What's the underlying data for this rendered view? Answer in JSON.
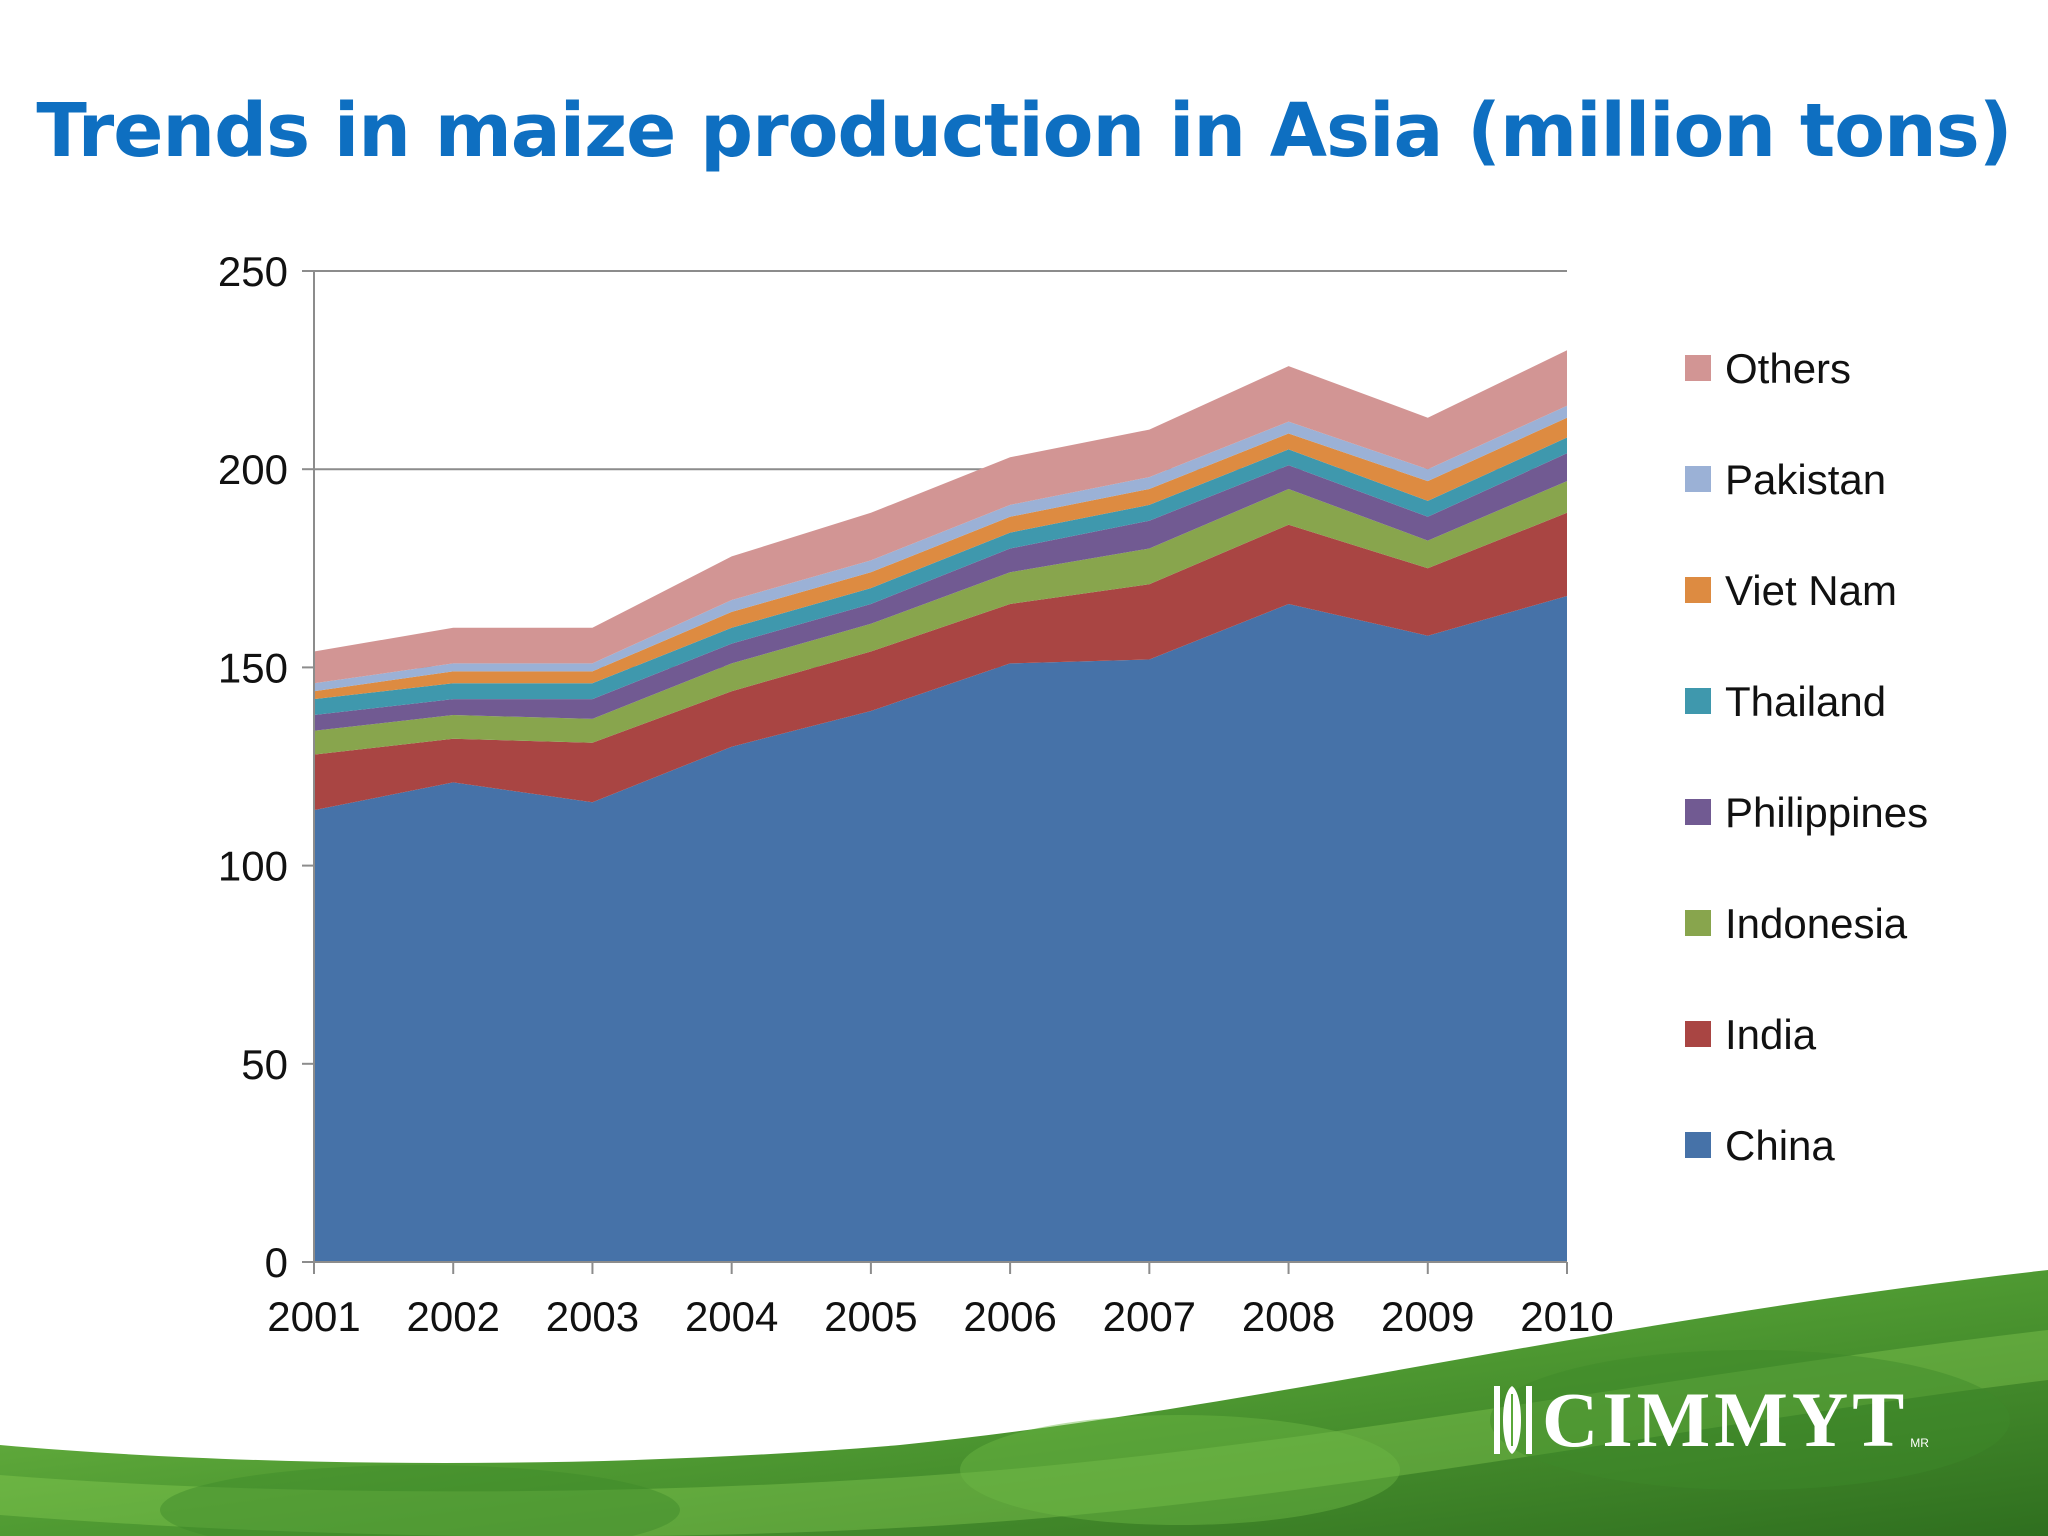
{
  "slide": {
    "title": "Trends in maize production in Asia (million tons)",
    "logo_text": "CIMMYT",
    "logo_mark_text": "MR",
    "colors": {
      "title": "#0e6fc1",
      "footer_green": "#5aa83a"
    }
  },
  "chart_data": {
    "type": "area",
    "stacked": true,
    "title": "",
    "xlabel": "",
    "ylabel": "",
    "x": [
      "2001",
      "2002",
      "2003",
      "2004",
      "2005",
      "2006",
      "2007",
      "2008",
      "2009",
      "2010"
    ],
    "ylim": [
      0,
      250
    ],
    "yticks": [
      0,
      50,
      100,
      150,
      200,
      250
    ],
    "grid": "horizontal",
    "legend_position": "right",
    "series": [
      {
        "name": "China",
        "color": "#4672a8",
        "values": [
          114,
          121,
          116,
          130,
          139,
          151,
          152,
          166,
          158,
          168
        ]
      },
      {
        "name": "India",
        "color": "#a94543",
        "values": [
          14,
          11,
          15,
          14,
          15,
          15,
          19,
          20,
          17,
          21
        ]
      },
      {
        "name": "Indonesia",
        "color": "#88a54d",
        "values": [
          6,
          6,
          6,
          7,
          7,
          8,
          9,
          9,
          7,
          8
        ]
      },
      {
        "name": "Philippines",
        "color": "#715a92",
        "values": [
          4,
          4,
          5,
          5,
          5,
          6,
          7,
          6,
          6,
          7
        ]
      },
      {
        "name": "Thailand",
        "color": "#3f98ad",
        "values": [
          4,
          4,
          4,
          4,
          4,
          4,
          4,
          4,
          4,
          4
        ]
      },
      {
        "name": "Viet Nam",
        "color": "#dd8b41",
        "values": [
          2,
          3,
          3,
          4,
          4,
          4,
          4,
          4,
          5,
          5
        ]
      },
      {
        "name": "Pakistan",
        "color": "#9bb1d6",
        "values": [
          2,
          2,
          2,
          3,
          3,
          3,
          3,
          3,
          3,
          3
        ]
      },
      {
        "name": "Others",
        "color": "#d29594",
        "values": [
          8,
          9,
          9,
          11,
          12,
          12,
          12,
          14,
          13,
          14
        ]
      }
    ]
  }
}
